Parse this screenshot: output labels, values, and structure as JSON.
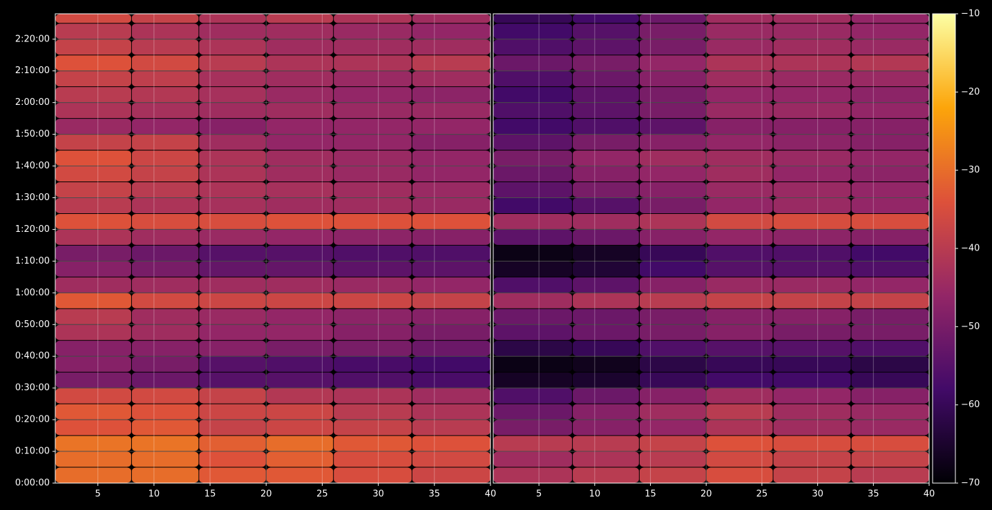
{
  "chart_data": {
    "type": "heatmap",
    "grid": true,
    "colormap": [
      "#000004",
      "#420a68",
      "#932667",
      "#dd513a",
      "#fca50a",
      "#fcffa4"
    ],
    "ylim": [
      0,
      148
    ],
    "yticks": [
      {
        "value": 0,
        "label": "0:00:00"
      },
      {
        "value": 10,
        "label": "0:10:00"
      },
      {
        "value": 20,
        "label": "0:20:00"
      },
      {
        "value": 30,
        "label": "0:30:00"
      },
      {
        "value": 40,
        "label": "0:40:00"
      },
      {
        "value": 50,
        "label": "0:50:00"
      },
      {
        "value": 60,
        "label": "1:00:00"
      },
      {
        "value": 70,
        "label": "1:10:00"
      },
      {
        "value": 80,
        "label": "1:20:00"
      },
      {
        "value": 90,
        "label": "1:30:00"
      },
      {
        "value": 100,
        "label": "1:40:00"
      },
      {
        "value": 110,
        "label": "1:50:00"
      },
      {
        "value": 120,
        "label": "2:00:00"
      },
      {
        "value": 130,
        "label": "2:10:00"
      },
      {
        "value": 140,
        "label": "2:20:00"
      }
    ],
    "y_edges": [
      0,
      5,
      10,
      15,
      20,
      25,
      30,
      35,
      40,
      45,
      50,
      55,
      60,
      65,
      70,
      75,
      80,
      85,
      90,
      95,
      100,
      105,
      110,
      115,
      120,
      125,
      130,
      135,
      140,
      145,
      148
    ],
    "vlim": [
      -70,
      -10
    ],
    "cticks": [
      {
        "value": -10,
        "label": "−10"
      },
      {
        "value": -20,
        "label": "−20"
      },
      {
        "value": -30,
        "label": "−30"
      },
      {
        "value": -40,
        "label": "−40"
      },
      {
        "value": -50,
        "label": "−50"
      },
      {
        "value": -60,
        "label": "−60"
      },
      {
        "value": -70,
        "label": "−70"
      }
    ],
    "panels": [
      {
        "xlim": [
          1.2,
          40
        ],
        "xticks": [
          5,
          10,
          15,
          20,
          25,
          30,
          35,
          40
        ],
        "x_edges": [
          1.2,
          8,
          14,
          20,
          26,
          33,
          40
        ],
        "values": [
          [
            -30,
            -30,
            -33,
            -33,
            -35,
            -37
          ],
          [
            -30,
            -30,
            -34,
            -32,
            -35,
            -36
          ],
          [
            -29,
            -29,
            -32,
            -30,
            -33,
            -34
          ],
          [
            -34,
            -33,
            -38,
            -37,
            -38,
            -40
          ],
          [
            -33,
            -34,
            -37,
            -37,
            -40,
            -42
          ],
          [
            -36,
            -36,
            -38,
            -41,
            -42,
            -44
          ],
          [
            -50,
            -52,
            -55,
            -55,
            -56,
            -57
          ],
          [
            -48,
            -50,
            -55,
            -56,
            -57,
            -58
          ],
          [
            -48,
            -48,
            -48,
            -50,
            -50,
            -52
          ],
          [
            -42,
            -44,
            -46,
            -46,
            -48,
            -50
          ],
          [
            -40,
            -44,
            -45,
            -46,
            -47,
            -48
          ],
          [
            -33,
            -36,
            -37,
            -37,
            -37,
            -38
          ],
          [
            -44,
            -44,
            -44,
            -44,
            -45,
            -46
          ],
          [
            -48,
            -50,
            -53,
            -53,
            -54,
            -54
          ],
          [
            -50,
            -52,
            -55,
            -55,
            -56,
            -56
          ],
          [
            -42,
            -44,
            -45,
            -46,
            -47,
            -48
          ],
          [
            -34,
            -35,
            -35,
            -34,
            -34,
            -34
          ],
          [
            -40,
            -42,
            -43,
            -44,
            -44,
            -45
          ],
          [
            -38,
            -40,
            -42,
            -43,
            -44,
            -45
          ],
          [
            -36,
            -38,
            -42,
            -44,
            -45,
            -46
          ],
          [
            -34,
            -37,
            -42,
            -44,
            -45,
            -46
          ],
          [
            -38,
            -38,
            -44,
            -46,
            -46,
            -48
          ],
          [
            -45,
            -46,
            -48,
            -46,
            -46,
            -46
          ],
          [
            -42,
            -43,
            -44,
            -44,
            -45,
            -45
          ],
          [
            -40,
            -41,
            -43,
            -45,
            -46,
            -47
          ],
          [
            -38,
            -39,
            -43,
            -44,
            -45,
            -44
          ],
          [
            -34,
            -36,
            -40,
            -42,
            -42,
            -40
          ],
          [
            -38,
            -40,
            -42,
            -44,
            -44,
            -44
          ],
          [
            -40,
            -42,
            -44,
            -44,
            -45,
            -46
          ],
          [
            -36,
            -38,
            -42,
            -40,
            -42,
            -44
          ]
        ]
      },
      {
        "xlim": [
          0.9,
          40
        ],
        "xticks": [
          5,
          10,
          15,
          20,
          25,
          30,
          35,
          40
        ],
        "x_edges": [
          0.9,
          8,
          14,
          20,
          26,
          33,
          40
        ],
        "values": [
          [
            -42,
            -40,
            -38,
            -35,
            -38,
            -40
          ],
          [
            -44,
            -42,
            -40,
            -36,
            -38,
            -38
          ],
          [
            -40,
            -40,
            -38,
            -34,
            -35,
            -35
          ],
          [
            -50,
            -48,
            -46,
            -42,
            -44,
            -45
          ],
          [
            -52,
            -48,
            -44,
            -40,
            -44,
            -45
          ],
          [
            -56,
            -52,
            -48,
            -44,
            -46,
            -48
          ],
          [
            -66,
            -65,
            -60,
            -58,
            -58,
            -60
          ],
          [
            -68,
            -67,
            -62,
            -60,
            -60,
            -62
          ],
          [
            -62,
            -60,
            -56,
            -55,
            -55,
            -56
          ],
          [
            -54,
            -52,
            -50,
            -48,
            -50,
            -50
          ],
          [
            -52,
            -52,
            -50,
            -48,
            -48,
            -50
          ],
          [
            -44,
            -42,
            -40,
            -38,
            -38,
            -38
          ],
          [
            -56,
            -54,
            -48,
            -45,
            -45,
            -46
          ],
          [
            -66,
            -64,
            -58,
            -55,
            -55,
            -56
          ],
          [
            -68,
            -66,
            -60,
            -56,
            -56,
            -58
          ],
          [
            -54,
            -52,
            -48,
            -46,
            -47,
            -48
          ],
          [
            -44,
            -44,
            -42,
            -36,
            -35,
            -35
          ],
          [
            -58,
            -55,
            -50,
            -46,
            -45,
            -46
          ],
          [
            -54,
            -50,
            -48,
            -45,
            -45,
            -46
          ],
          [
            -52,
            -48,
            -46,
            -44,
            -46,
            -47
          ],
          [
            -50,
            -46,
            -44,
            -44,
            -45,
            -46
          ],
          [
            -54,
            -50,
            -48,
            -46,
            -47,
            -48
          ],
          [
            -58,
            -56,
            -54,
            -48,
            -48,
            -48
          ],
          [
            -56,
            -54,
            -50,
            -45,
            -45,
            -46
          ],
          [
            -58,
            -54,
            -50,
            -46,
            -46,
            -47
          ],
          [
            -56,
            -52,
            -48,
            -44,
            -45,
            -45
          ],
          [
            -52,
            -50,
            -46,
            -42,
            -42,
            -41
          ],
          [
            -56,
            -54,
            -50,
            -45,
            -44,
            -45
          ],
          [
            -58,
            -55,
            -50,
            -45,
            -45,
            -46
          ],
          [
            -60,
            -58,
            -52,
            -44,
            -44,
            -46
          ]
        ]
      }
    ]
  }
}
